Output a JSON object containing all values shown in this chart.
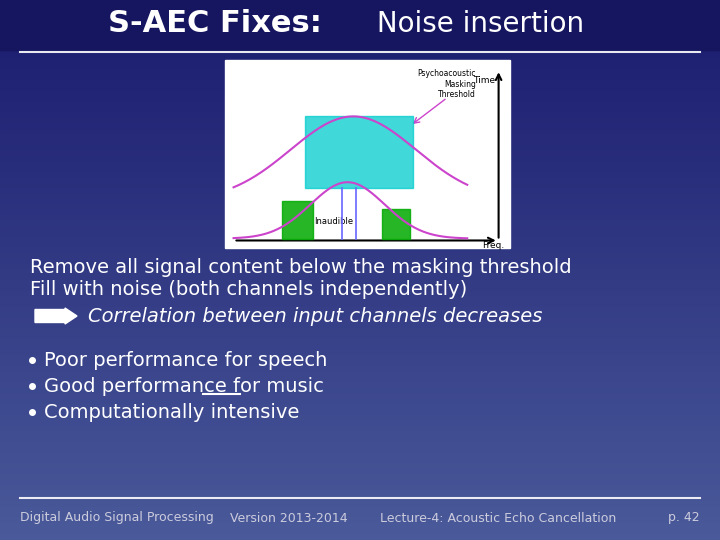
{
  "title_bold": "S-AEC Fixes:",
  "title_normal": " Noise insertion",
  "bg_color_top": "#1a1a6e",
  "bg_color_bottom": "#4a5a9a",
  "text_color": "#ffffff",
  "line1": "Remove all signal content below the masking threshold",
  "line2": "Fill with noise (both channels independently)",
  "arrow_text": "Correlation between input channels decreases",
  "bullets": [
    "Poor performance for speech",
    "Good performance for music",
    "Computationally intensive"
  ],
  "footer_left": "Digital Audio Signal Processing",
  "footer_mid1": "Version 2013-2014",
  "footer_mid2": "Lecture-4: Acoustic Echo Cancellation",
  "footer_right": "p. 42",
  "title_fontsize": 22,
  "body_fontsize": 14,
  "footer_fontsize": 9
}
